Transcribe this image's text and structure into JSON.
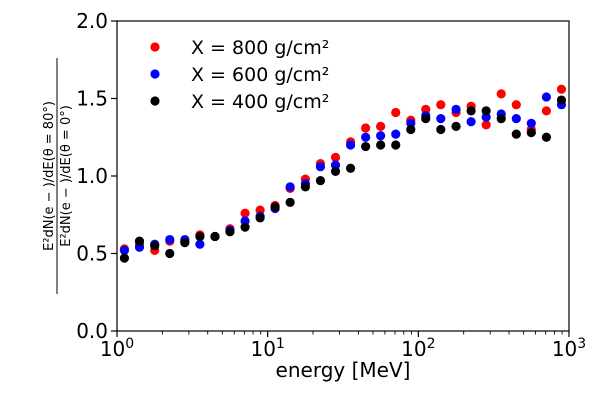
{
  "chart_data": {
    "type": "scatter",
    "xscale": "log",
    "xlim": [
      1,
      1000
    ],
    "ylim": [
      0.0,
      2.0
    ],
    "xlabel": "energy [MeV]",
    "ylabel_numerator": "E²dN(e − )/dE(θ = 80°)",
    "ylabel_denominator": "E²dN(e − )/dE(θ = 0°)",
    "xticks": [
      {
        "value": 1,
        "base": "10",
        "exp": "0"
      },
      {
        "value": 10,
        "base": "10",
        "exp": "1"
      },
      {
        "value": 100,
        "base": "10",
        "exp": "2"
      },
      {
        "value": 1000,
        "base": "10",
        "exp": "3"
      }
    ],
    "yticks": [
      {
        "value": 0.0,
        "label": "0.0"
      },
      {
        "value": 0.5,
        "label": "0.5"
      },
      {
        "value": 1.0,
        "label": "1.0"
      },
      {
        "value": 1.5,
        "label": "1.5"
      },
      {
        "value": 2.0,
        "label": "2.0"
      }
    ],
    "legend_position": "top-left",
    "grid": false,
    "x": [
      1.12,
      1.41,
      1.78,
      2.24,
      2.82,
      3.55,
      4.47,
      5.62,
      7.08,
      8.91,
      11.2,
      14.1,
      17.8,
      22.4,
      28.2,
      35.5,
      44.7,
      56.2,
      70.8,
      89.1,
      112,
      141,
      178,
      224,
      282,
      355,
      447,
      562,
      708,
      891
    ],
    "series": [
      {
        "name": "X = 800 g/cm²",
        "color": "#ff0000",
        "values": [
          0.53,
          0.56,
          0.52,
          0.58,
          0.58,
          0.62,
          0.61,
          0.66,
          0.76,
          0.78,
          0.81,
          0.92,
          0.98,
          1.08,
          1.12,
          1.22,
          1.31,
          1.32,
          1.41,
          1.36,
          1.43,
          1.46,
          1.41,
          1.45,
          1.33,
          1.53,
          1.46,
          1.3,
          1.42,
          1.56
        ]
      },
      {
        "name": "X = 600 g/cm²",
        "color": "#0000ff",
        "values": [
          0.52,
          0.54,
          0.56,
          0.59,
          0.59,
          0.56,
          0.61,
          0.65,
          0.71,
          0.74,
          0.79,
          0.93,
          0.95,
          1.06,
          1.07,
          1.2,
          1.25,
          1.26,
          1.27,
          1.34,
          1.39,
          1.37,
          1.43,
          1.35,
          1.38,
          1.4,
          1.37,
          1.34,
          1.51,
          1.46
        ]
      },
      {
        "name": "X = 400 g/cm²",
        "color": "#000000",
        "values": [
          0.47,
          0.58,
          0.55,
          0.5,
          0.57,
          0.61,
          0.61,
          0.64,
          0.67,
          0.73,
          0.8,
          0.83,
          0.93,
          0.97,
          1.03,
          1.05,
          1.19,
          1.2,
          1.2,
          1.3,
          1.37,
          1.3,
          1.32,
          1.42,
          1.42,
          1.37,
          1.27,
          1.28,
          1.25,
          1.49
        ]
      }
    ]
  }
}
